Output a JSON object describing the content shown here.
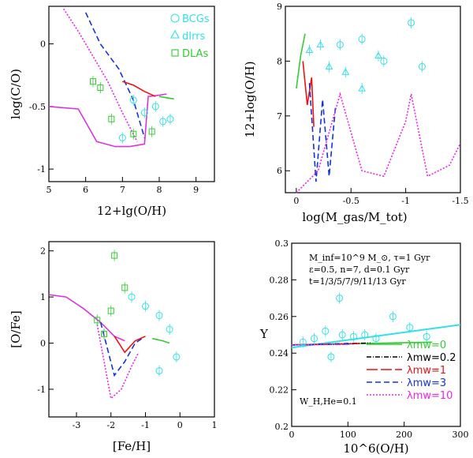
{
  "chart_data": [
    {
      "type": "line",
      "id": "co-oh",
      "xlabel": "12+lg(O/H)",
      "ylabel": "log(C/O)",
      "xlim": [
        5,
        9.5
      ],
      "ylim": [
        -1.1,
        0.3
      ],
      "xticks": [
        "5",
        "6",
        "7",
        "8",
        "9"
      ],
      "yticks": [
        "-1",
        "-0.5",
        "0"
      ],
      "legend": [
        {
          "label": "BCGs",
          "color": "#33e0e8",
          "marker": "circle"
        },
        {
          "label": "dIrrs",
          "color": "#33e0e8",
          "marker": "triangle"
        },
        {
          "label": "DLAs",
          "color": "#33cc33",
          "marker": "square"
        }
      ],
      "series": [
        {
          "name": "base",
          "color": "#dd33dd",
          "dash": "",
          "x": [
            5.0,
            5.8,
            6.3,
            6.8,
            7.2,
            7.6,
            7.7,
            8.0,
            8.2
          ],
          "y": [
            -0.5,
            -0.52,
            -0.78,
            -0.82,
            -0.82,
            -0.8,
            -0.42,
            -0.41,
            -0.4
          ]
        },
        {
          "name": "lambda3",
          "color": "#1133dd",
          "dash": "7,4",
          "x": [
            6.0,
            6.4,
            6.9,
            7.3,
            7.6
          ],
          "y": [
            0.25,
            0.0,
            -0.2,
            -0.45,
            -0.75
          ]
        },
        {
          "name": "lambda10",
          "color": "#ee22ee",
          "dash": "2,2",
          "x": [
            5.4,
            5.8,
            6.2,
            6.6,
            7.0,
            7.4
          ],
          "y": [
            0.28,
            0.1,
            -0.1,
            -0.3,
            -0.55,
            -0.78
          ]
        },
        {
          "name": "lambda1",
          "color": "#ee1111",
          "dash": "",
          "x": [
            7.0,
            7.3,
            7.6,
            7.9
          ],
          "y": [
            -0.3,
            -0.33,
            -0.38,
            -0.42
          ]
        },
        {
          "name": "lambda0",
          "color": "#33cc33",
          "dash": "",
          "x": [
            8.0,
            8.2,
            8.4
          ],
          "y": [
            -0.42,
            -0.43,
            -0.44
          ]
        }
      ],
      "points": [
        {
          "marker": "circle",
          "color": "#33e0e8",
          "x": [
            7.3,
            7.6,
            7.9,
            8.1,
            8.3,
            7.0
          ],
          "y": [
            -0.45,
            -0.55,
            -0.5,
            -0.62,
            -0.6,
            -0.75
          ]
        },
        {
          "marker": "square",
          "color": "#33cc33",
          "x": [
            6.2,
            6.7,
            7.3,
            7.8,
            6.4
          ],
          "y": [
            -0.3,
            -0.6,
            -0.72,
            -0.7,
            -0.35
          ]
        }
      ]
    },
    {
      "type": "line",
      "id": "oh-gas",
      "xlabel": "log(M_gas/M_tot)",
      "ylabel": "12+log(O/H)",
      "xlim": [
        0.1,
        -1.5
      ],
      "ylim": [
        5.6,
        9
      ],
      "xticks": [
        "0",
        "-0.5",
        "-1",
        "-1.5"
      ],
      "yticks": [
        "6",
        "7",
        "8",
        "9"
      ],
      "series": [
        {
          "name": "lambda0",
          "color": "#33cc33",
          "dash": "",
          "x": [
            0.0,
            -0.04,
            -0.08
          ],
          "y": [
            7.5,
            8.1,
            8.5
          ]
        },
        {
          "name": "lambda1",
          "color": "#ee1111",
          "dash": "",
          "x": [
            -0.06,
            -0.1,
            -0.14,
            -0.16
          ],
          "y": [
            8.0,
            7.2,
            7.7,
            6.8
          ]
        },
        {
          "name": "lambda3",
          "color": "#1133dd",
          "dash": "7,4",
          "x": [
            -0.12,
            -0.18,
            -0.24,
            -0.3,
            -0.36
          ],
          "y": [
            7.6,
            5.8,
            7.3,
            5.9,
            7.2
          ]
        },
        {
          "name": "lambda10",
          "color": "#ee22ee",
          "dash": "2,2",
          "x": [
            0.0,
            -0.2,
            -0.4,
            -0.6,
            -0.8,
            -1.0,
            -1.05,
            -1.2,
            -1.4,
            -1.5
          ],
          "y": [
            5.6,
            6.0,
            7.4,
            6.0,
            5.9,
            6.9,
            7.4,
            5.9,
            6.1,
            6.5
          ]
        }
      ],
      "points": [
        {
          "marker": "triangle",
          "color": "#33e0e8",
          "x": [
            -0.12,
            -0.22,
            -0.3,
            -0.45,
            -0.6,
            -0.75
          ],
          "y": [
            8.2,
            8.3,
            7.9,
            7.8,
            7.5,
            8.1
          ]
        },
        {
          "marker": "circle",
          "color": "#33e0e8",
          "x": [
            -0.4,
            -0.6,
            -0.8,
            -1.05,
            -1.15
          ],
          "y": [
            8.3,
            8.4,
            8.0,
            8.7,
            7.9
          ]
        }
      ]
    },
    {
      "type": "line",
      "id": "ofe-feh",
      "xlabel": "[Fe/H]",
      "ylabel": "[O/Fe]",
      "xlim": [
        -3.8,
        1
      ],
      "ylim": [
        -1.6,
        2.2
      ],
      "xticks": [
        "-3",
        "-2",
        "-1",
        "0",
        "1"
      ],
      "yticks": [
        "-1",
        "0",
        "1",
        "2"
      ],
      "series": [
        {
          "name": "base",
          "color": "#dd33dd",
          "dash": "",
          "x": [
            -3.8,
            -3.3,
            -2.8,
            -2.3,
            -1.9,
            -1.6
          ],
          "y": [
            1.05,
            1.0,
            0.75,
            0.45,
            0.15,
            0.05
          ]
        },
        {
          "name": "lambda3",
          "color": "#1133dd",
          "dash": "7,4",
          "x": [
            -2.3,
            -1.9,
            -1.6,
            -1.3,
            -1.1
          ],
          "y": [
            0.45,
            -0.7,
            -0.4,
            0.0,
            0.1
          ]
        },
        {
          "name": "lambda10",
          "color": "#ee22ee",
          "dash": "2,2",
          "x": [
            -2.4,
            -2.0,
            -1.7,
            -1.4,
            -1.2
          ],
          "y": [
            0.4,
            -1.2,
            -1.0,
            -0.5,
            -0.2
          ]
        },
        {
          "name": "lambda1",
          "color": "#ee1111",
          "dash": "",
          "x": [
            -1.9,
            -1.6,
            -1.3,
            -1.0
          ],
          "y": [
            0.15,
            -0.2,
            0.05,
            0.15
          ]
        },
        {
          "name": "lambda0",
          "color": "#33cc33",
          "dash": "",
          "x": [
            -0.8,
            -0.5,
            -0.3
          ],
          "y": [
            0.1,
            0.05,
            0.0
          ]
        }
      ],
      "points": [
        {
          "marker": "circle",
          "color": "#33e0e8",
          "x": [
            -1.4,
            -1.0,
            -0.6,
            -0.3,
            -0.1,
            -0.6
          ],
          "y": [
            1.0,
            0.8,
            0.6,
            0.3,
            -0.3,
            -0.6
          ]
        },
        {
          "marker": "square",
          "color": "#33cc33",
          "x": [
            -2.4,
            -2.0,
            -1.6,
            -1.9,
            -2.2
          ],
          "y": [
            0.5,
            0.7,
            1.2,
            1.9,
            0.2
          ]
        }
      ]
    },
    {
      "type": "line",
      "id": "y-oh",
      "xlabel": "10^6(O/H)",
      "ylabel": "Y",
      "xlim": [
        0,
        300
      ],
      "ylim": [
        0.2,
        0.3
      ],
      "xticks": [
        "0",
        "100",
        "200",
        "300"
      ],
      "yticks": [
        "0.2",
        "0.22",
        "0.24",
        "0.26",
        "0.28",
        "0.3"
      ],
      "annotations": [
        "M_inf=10^9 M_⊙, τ=1 Gyr",
        "ε=0.5, n=7, d=0.1 Gyr",
        "t=1/3/5/7/9/11/13 Gyr",
        "W_H,He=0.1"
      ],
      "legend": [
        {
          "label": "λmw=0",
          "color": "#33cc33",
          "dash": ""
        },
        {
          "label": "λmw=0.2",
          "color": "#000000",
          "dash": "6,2,1,2"
        },
        {
          "label": "λmw=1",
          "color": "#ee1111",
          "dash": "14,4"
        },
        {
          "label": "λmw=3",
          "color": "#1133dd",
          "dash": "7,4"
        },
        {
          "label": "λmw=10",
          "color": "#ee22ee",
          "dash": "2,2"
        }
      ],
      "series": [
        {
          "name": "fit",
          "color": "#33e0e8",
          "dash": "",
          "x": [
            0,
            300
          ],
          "y": [
            0.243,
            0.2555
          ]
        },
        {
          "name": "lambda0",
          "color": "#33cc33",
          "dash": "",
          "x": [
            0,
            250
          ],
          "y": [
            0.2445,
            0.246
          ]
        },
        {
          "name": "lambda02",
          "color": "#000000",
          "dash": "6,2,1,2",
          "x": [
            0,
            140
          ],
          "y": [
            0.2445,
            0.2455
          ]
        },
        {
          "name": "lambda1",
          "color": "#ee1111",
          "dash": "14,4",
          "x": [
            0,
            120
          ],
          "y": [
            0.2445,
            0.2452
          ]
        },
        {
          "name": "lambda3",
          "color": "#1133dd",
          "dash": "7,4",
          "x": [
            0,
            110
          ],
          "y": [
            0.2445,
            0.245
          ]
        },
        {
          "name": "lambda10",
          "color": "#ee22ee",
          "dash": "2,2",
          "x": [
            0,
            100
          ],
          "y": [
            0.2445,
            0.2448
          ]
        }
      ],
      "points": [
        {
          "marker": "circle",
          "color": "#33e0e8",
          "x": [
            20,
            40,
            60,
            85,
            90,
            110,
            130,
            150,
            180,
            210,
            240,
            70
          ],
          "y": [
            0.246,
            0.248,
            0.252,
            0.27,
            0.25,
            0.249,
            0.25,
            0.248,
            0.26,
            0.254,
            0.249,
            0.238
          ]
        }
      ]
    }
  ]
}
